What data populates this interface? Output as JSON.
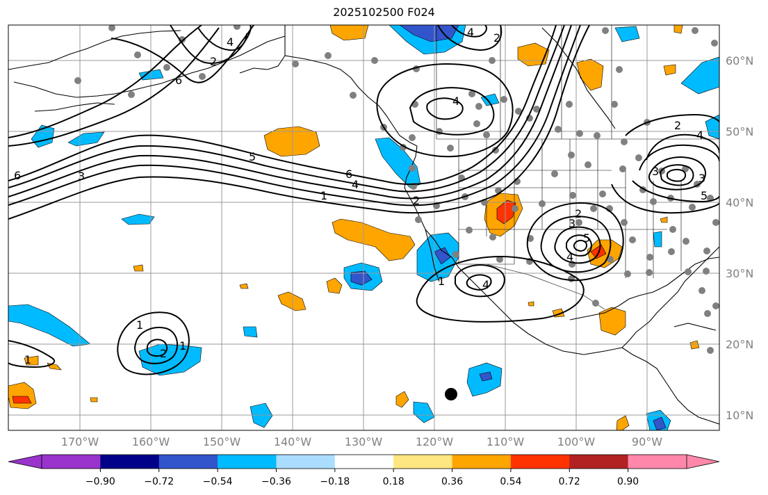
{
  "title": "2025102500 F024",
  "lon_labels": [
    "170°W",
    "160°W",
    "150°W",
    "140°W",
    "130°W",
    "120°W",
    "110°W",
    "100°W",
    "90°W"
  ],
  "lat_labels": [
    "60°N",
    "50°N",
    "40°N",
    "30°N",
    "20°N",
    "10°N"
  ],
  "colorbar": {
    "ticks": [
      "−0.90",
      "−0.72",
      "−0.54",
      "−0.36",
      "−0.18",
      "0.18",
      "0.36",
      "0.54",
      "0.72",
      "0.90"
    ],
    "colors": [
      "#9933cc",
      "#000088",
      "#3355cc",
      "#00bbff",
      "#aaddff",
      "#ffffff",
      "#ffe680",
      "#ffa500",
      "#ff3300",
      "#b22222",
      "#ff88aa"
    ]
  },
  "contour_labels": [
    "6",
    "3",
    "5",
    "6",
    "4",
    "1",
    "2",
    "2",
    "1",
    "4",
    "4",
    "6",
    "2",
    "3",
    "4",
    "5",
    "1",
    "2",
    "3",
    "5",
    "4",
    "4",
    "2",
    "1",
    "2",
    "4",
    "3",
    "1"
  ],
  "colors": {
    "blue_fill": "#00bbff",
    "dark_blue_fill": "#3355cc",
    "orange_fill": "#ffa500",
    "red_fill": "#ff3300",
    "station_dot": "#808080",
    "grid": "#999999"
  }
}
